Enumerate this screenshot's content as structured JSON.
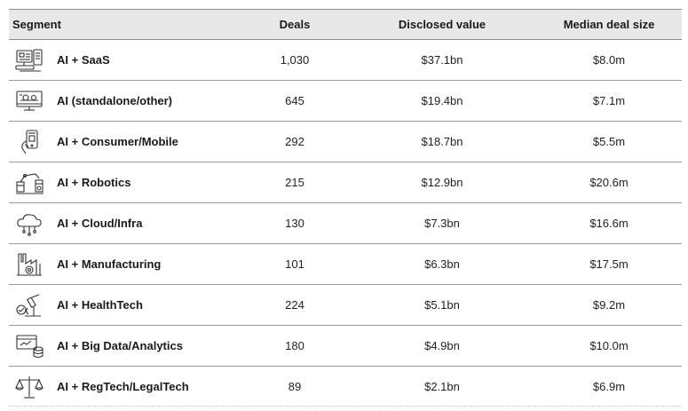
{
  "columns": {
    "segment": "Segment",
    "deals": "Deals",
    "value": "Disclosed value",
    "median": "Median deal size"
  },
  "rows": [
    {
      "icon": "saas-icon",
      "segment": "AI + SaaS",
      "deals": "1,030",
      "value": "$37.1bn",
      "median": "$8.0m"
    },
    {
      "icon": "ai-standalone-icon",
      "segment": "AI (standalone/other)",
      "deals": "645",
      "value": "$19.4bn",
      "median": "$7.1m"
    },
    {
      "icon": "mobile-icon",
      "segment": "AI + Consumer/Mobile",
      "deals": "292",
      "value": "$18.7bn",
      "median": "$5.5m"
    },
    {
      "icon": "robotics-icon",
      "segment": "AI + Robotics",
      "deals": "215",
      "value": "$12.9bn",
      "median": "$20.6m"
    },
    {
      "icon": "cloud-icon",
      "segment": "AI + Cloud/Infra",
      "deals": "130",
      "value": "$7.3bn",
      "median": "$16.6m"
    },
    {
      "icon": "factory-icon",
      "segment": "AI + Manufacturing",
      "deals": "101",
      "value": "$6.3bn",
      "median": "$17.5m"
    },
    {
      "icon": "microscope-icon",
      "segment": "AI + HealthTech",
      "deals": "224",
      "value": "$5.1bn",
      "median": "$9.2m"
    },
    {
      "icon": "database-icon",
      "segment": "AI + Big Data/Analytics",
      "deals": "180",
      "value": "$4.9bn",
      "median": "$10.0m"
    },
    {
      "icon": "scales-icon",
      "segment": "AI + RegTech/LegalTech",
      "deals": "89",
      "value": "$2.1bn",
      "median": "$6.9m"
    }
  ],
  "colors": {
    "header_bg": "#e8e8e8",
    "rule": "#9a9a9a"
  }
}
